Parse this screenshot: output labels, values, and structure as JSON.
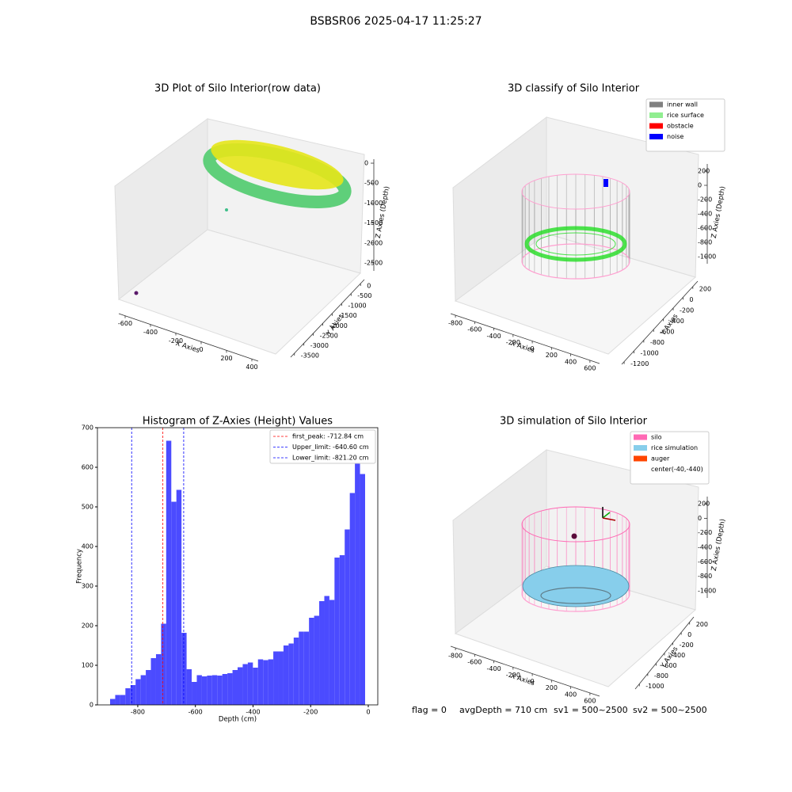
{
  "title": "BSBSR06 2025-04-17 11:25:27",
  "footer": [
    "flag = 0",
    "avgDepth = 710 cm",
    "sv1 = 500~2500",
    "sv2 = 500~2500"
  ],
  "chart_data": [
    {
      "type": "scatter3d",
      "title": "3D Plot of Silo Interior(row data)",
      "xlabel": "X Axies",
      "ylabel": "Y Axies",
      "zlabel": "Z Axies (Depth)",
      "xlim": [
        -650,
        450
      ],
      "xticks": [
        -600,
        -400,
        -200,
        0,
        200,
        400
      ],
      "ylim": [
        -3700,
        200
      ],
      "yticks": [
        0,
        -500,
        -1000,
        -1500,
        -2000,
        -2500,
        -3000,
        -3500
      ],
      "zlim": [
        -2700,
        100
      ],
      "zticks": [
        0,
        -500,
        -1000,
        -1500,
        -2000,
        -2500
      ]
    },
    {
      "type": "scatter3d",
      "title": "3D classify of Silo Interior",
      "xlabel": "X Axies",
      "ylabel": "Y Axies",
      "zlabel": "Z Axies (Depth)",
      "xlim": [
        -850,
        700
      ],
      "xticks": [
        -800,
        -600,
        -400,
        -200,
        0,
        200,
        400,
        600
      ],
      "ylim": [
        -1250,
        300
      ],
      "yticks": [
        200,
        0,
        -200,
        -400,
        -600,
        -800,
        -1000,
        -1200
      ],
      "zlim": [
        -1100,
        300
      ],
      "zticks": [
        200,
        0,
        -200,
        -400,
        -600,
        -800,
        -1000
      ],
      "legend": [
        {
          "name": "inner wall",
          "color": "#808080"
        },
        {
          "name": "rice surface",
          "color": "#90ee90"
        },
        {
          "name": "obstacle",
          "color": "#ff0000"
        },
        {
          "name": "noise",
          "color": "#0000ff"
        }
      ]
    },
    {
      "type": "histogram",
      "title": "Histogram of Z-Axies (Height) Values",
      "xlabel": "Depth (cm)",
      "ylabel": "Frequency",
      "color": "#4b4bff",
      "bins": [
        -896,
        -878.3,
        -860.6,
        -842.9,
        -825.2,
        -807.5,
        -789.8,
        -772.1,
        -754.4,
        -736.7,
        -719,
        -701.3,
        -683.6,
        -665.9,
        -648.2,
        -630.5,
        -612.8,
        -595.1,
        -577.4,
        -559.7,
        -542,
        -524.3,
        -506.6,
        -488.9,
        -471.2,
        -453.5,
        -435.8,
        -418.1,
        -400.4,
        -382.7,
        -365,
        -347.3,
        -329.6,
        -311.9,
        -294.2,
        -276.5,
        -258.8,
        -241.1,
        -223.4,
        -205.7,
        -188,
        -170.3,
        -152.6,
        -134.9,
        -117.2,
        -99.5,
        -81.8,
        -64.1,
        -46.4,
        -28.7,
        -11
      ],
      "values": [
        15,
        25,
        25,
        42,
        50,
        65,
        75,
        88,
        118,
        128,
        205,
        667,
        513,
        543,
        182,
        90,
        58,
        75,
        72,
        74,
        75,
        74,
        78,
        80,
        88,
        95,
        103,
        107,
        94,
        115,
        113,
        115,
        135,
        135,
        150,
        155,
        170,
        185,
        185,
        220,
        225,
        262,
        275,
        265,
        372,
        378,
        443,
        535,
        630,
        583
      ],
      "xlim": [
        -940,
        33
      ],
      "xticks": [
        -800,
        -600,
        -400,
        -200,
        0
      ],
      "ylim": [
        0,
        700
      ],
      "yticks": [
        0,
        100,
        200,
        300,
        400,
        500,
        600,
        700
      ],
      "vlines": [
        {
          "name": "first_peak: -712.84 cm",
          "value": -712.84,
          "color": "#ff0000"
        },
        {
          "name": "Upper_limit: -640.60 cm",
          "value": -640.6,
          "color": "#0000ff"
        },
        {
          "name": "Lower_limit: -821.20 cm",
          "value": -821.2,
          "color": "#0000ff"
        }
      ]
    },
    {
      "type": "scatter3d",
      "title": "3D simulation of Silo Interior",
      "xlabel": "X Axies",
      "ylabel": "Y Axies",
      "zlabel": "Z Axies (Depth)",
      "xlim": [
        -850,
        700
      ],
      "xticks": [
        -800,
        -600,
        -400,
        -200,
        0,
        200,
        400,
        600
      ],
      "ylim": [
        -1100,
        300
      ],
      "yticks": [
        200,
        0,
        -200,
        -400,
        -600,
        -800,
        -1000
      ],
      "zlim": [
        -1100,
        300
      ],
      "zticks": [
        200,
        0,
        -200,
        -400,
        -600,
        -800,
        -1000
      ],
      "legend": [
        {
          "name": "silo",
          "color": "#ff69b4"
        },
        {
          "name": "rice simulation",
          "color": "#87ceeb"
        },
        {
          "name": "auger",
          "color": "#ff4500"
        },
        {
          "name": "center(-40,-440)"
        }
      ]
    }
  ]
}
